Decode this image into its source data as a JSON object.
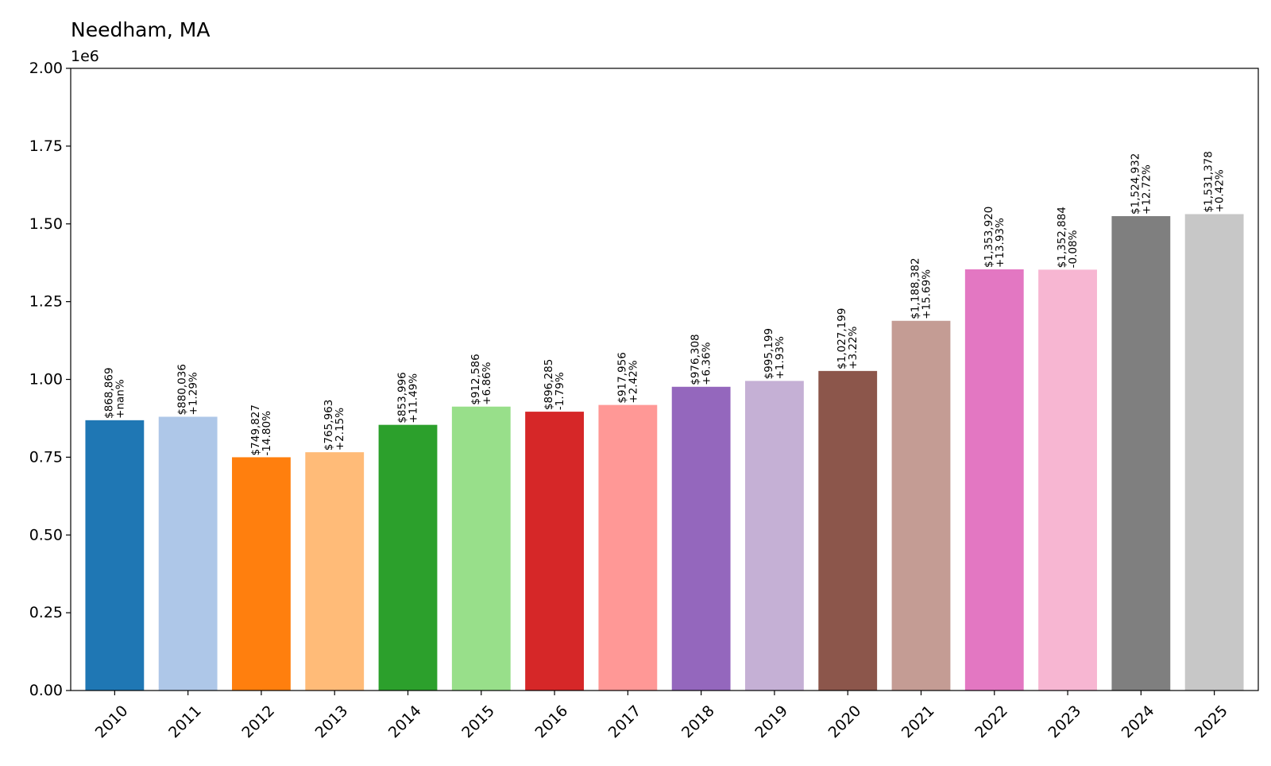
{
  "chart_data": {
    "type": "bar",
    "title": "Needham, MA",
    "xlabel": "",
    "ylabel": "",
    "y_offset_label": "1e6",
    "ylim": [
      0,
      2000000
    ],
    "yticks": [
      0,
      250000,
      500000,
      750000,
      1000000,
      1250000,
      1500000,
      1750000,
      2000000
    ],
    "ytick_labels": [
      "0.00",
      "0.25",
      "0.50",
      "0.75",
      "1.00",
      "1.25",
      "1.50",
      "1.75",
      "2.00"
    ],
    "grid": false,
    "categories": [
      "2010",
      "2011",
      "2012",
      "2013",
      "2014",
      "2015",
      "2016",
      "2017",
      "2018",
      "2019",
      "2020",
      "2021",
      "2022",
      "2023",
      "2024",
      "2025"
    ],
    "values": [
      868869,
      880036,
      749827,
      765963,
      853996,
      912586,
      896285,
      917956,
      976308,
      995199,
      1027199,
      1188382,
      1353920,
      1352884,
      1524932,
      1531378
    ],
    "value_labels": [
      "$868,869",
      "$880,036",
      "$749,827",
      "$765,963",
      "$853,996",
      "$912,586",
      "$896,285",
      "$917,956",
      "$976,308",
      "$995,199",
      "$1,027,199",
      "$1,188,382",
      "$1,353,920",
      "$1,352,884",
      "$1,524,932",
      "$1,531,378"
    ],
    "change_labels": [
      "+nan%",
      "+1.29%",
      "-14.80%",
      "+2.15%",
      "+11.49%",
      "+6.86%",
      "-1.79%",
      "+2.42%",
      "+6.36%",
      "+1.93%",
      "+3.22%",
      "+15.69%",
      "+13.93%",
      "-0.08%",
      "+12.72%",
      "+0.42%"
    ],
    "colors": [
      "#1f77b4",
      "#aec7e8",
      "#ff7f0e",
      "#ffbb78",
      "#2ca02c",
      "#98df8a",
      "#d62728",
      "#ff9896",
      "#9467bd",
      "#c5b0d5",
      "#8c564b",
      "#c49c94",
      "#e377c2",
      "#f7b6d2",
      "#7f7f7f",
      "#c7c7c7"
    ]
  }
}
